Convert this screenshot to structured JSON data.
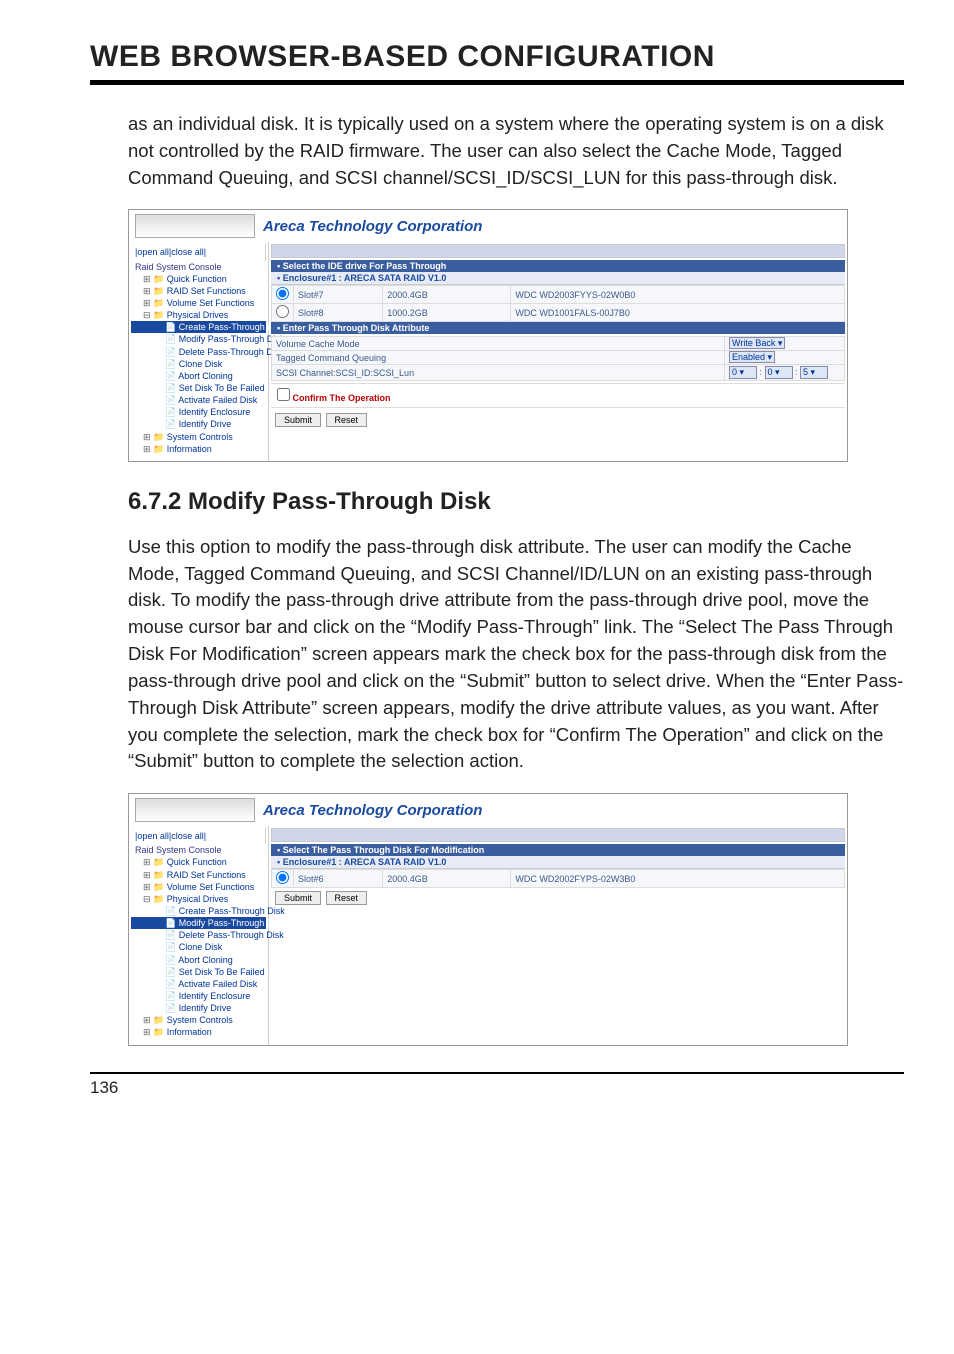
{
  "page": {
    "title": "WEB BROWSER-BASED CONFIGURATION",
    "number": "136",
    "para1": "as an individual disk. It is typically used on a system where the operating system is on a disk not controlled by the RAID firmware. The user can also select the Cache Mode, Tagged Command Queuing, and SCSI channel/SCSI_ID/SCSI_LUN for this pass-through disk.",
    "section_title": "6.7.2 Modify Pass-Through Disk",
    "para2": "Use this option to modify the pass-through disk attribute. The user can modify the Cache Mode, Tagged Command Queuing, and SCSI Channel/ID/LUN on an existing pass-through disk. To modify the pass-through drive attribute from the pass-through drive pool, move the mouse cursor bar and click on the “Modify Pass-Through” link. The “Select The Pass Through Disk For Modification” screen appears mark the check box for the pass-through disk from the pass-through drive pool and click on the “Submit” button to select drive. When the “Enter Pass-Through Disk Attribute” screen appears, modify the drive attribute values, as you want. After you complete the selection, mark the check box for “Confirm The Operation” and click on the “Submit” button to complete the selection action."
  },
  "shot1": {
    "corp": "Areca Technology Corporation",
    "openclose": "|open all|close all|",
    "nav": {
      "root": "Raid System Console",
      "items": [
        {
          "l": "Quick Function",
          "lvl": 1,
          "exp": "+"
        },
        {
          "l": "RAID Set Functions",
          "lvl": 1,
          "exp": "+"
        },
        {
          "l": "Volume Set Functions",
          "lvl": 1,
          "exp": "+"
        },
        {
          "l": "Physical Drives",
          "lvl": 1,
          "exp": "-"
        },
        {
          "l": "Create Pass-Through Disk",
          "lvl": 2,
          "active": true
        },
        {
          "l": "Modify Pass-Through Disk",
          "lvl": 2
        },
        {
          "l": "Delete Pass-Through Disk",
          "lvl": 2
        },
        {
          "l": "Clone Disk",
          "lvl": 2
        },
        {
          "l": "Abort Cloning",
          "lvl": 2
        },
        {
          "l": "Set Disk To Be Failed",
          "lvl": 2
        },
        {
          "l": "Activate Failed Disk",
          "lvl": 2
        },
        {
          "l": "Identify Enclosure",
          "lvl": 2
        },
        {
          "l": "Identify Drive",
          "lvl": 2
        },
        {
          "l": "System Controls",
          "lvl": 1,
          "exp": "+"
        },
        {
          "l": "Information",
          "lvl": 1,
          "exp": "+"
        }
      ]
    },
    "headers": {
      "select": "▪ Select the IDE drive For Pass Through",
      "enclosure": "▪ Enclosure#1 : ARECA SATA RAID V1.0",
      "attr": "▪ Enter Pass Through Disk Attribute"
    },
    "drives": [
      {
        "sel": true,
        "slot": "Slot#7",
        "size": "2000.4GB",
        "model": "WDC WD2003FYYS-02W0B0"
      },
      {
        "sel": false,
        "slot": "Slot#8",
        "size": "1000.2GB",
        "model": "WDC WD1001FALS-00J7B0"
      }
    ],
    "attrs": {
      "cache": {
        "label": "Volume Cache Mode",
        "value": "Write Back"
      },
      "tcq": {
        "label": "Tagged Command Queuing",
        "value": "Enabled"
      },
      "scsi": {
        "label": "SCSI Channel:SCSI_ID:SCSI_Lun",
        "ch": "0",
        "id": "0",
        "lun": "5"
      }
    },
    "confirm": "Confirm The Operation",
    "submit": "Submit",
    "reset": "Reset"
  },
  "shot2": {
    "corp": "Areca Technology Corporation",
    "openclose": "|open all|close all|",
    "nav": {
      "root": "Raid System Console",
      "items": [
        {
          "l": "Quick Function",
          "lvl": 1,
          "exp": "+"
        },
        {
          "l": "RAID Set Functions",
          "lvl": 1,
          "exp": "+"
        },
        {
          "l": "Volume Set Functions",
          "lvl": 1,
          "exp": "+"
        },
        {
          "l": "Physical Drives",
          "lvl": 1,
          "exp": "-"
        },
        {
          "l": "Create Pass-Through Disk",
          "lvl": 2
        },
        {
          "l": "Modify Pass-Through Disk",
          "lvl": 2,
          "active": true
        },
        {
          "l": "Delete Pass-Through Disk",
          "lvl": 2
        },
        {
          "l": "Clone Disk",
          "lvl": 2
        },
        {
          "l": "Abort Cloning",
          "lvl": 2
        },
        {
          "l": "Set Disk To Be Failed",
          "lvl": 2
        },
        {
          "l": "Activate Failed Disk",
          "lvl": 2
        },
        {
          "l": "Identify Enclosure",
          "lvl": 2
        },
        {
          "l": "Identify Drive",
          "lvl": 2
        },
        {
          "l": "System Controls",
          "lvl": 1,
          "exp": "+"
        },
        {
          "l": "Information",
          "lvl": 1,
          "exp": "+"
        }
      ]
    },
    "headers": {
      "select": "▪ Select The Pass Through Disk For Modification",
      "enclosure": "▪ Enclosure#1 : ARECA SATA RAID V1.0"
    },
    "drives": [
      {
        "sel": true,
        "slot": "Slot#6",
        "size": "2000.4GB",
        "model": "WDC WD2002FYPS-02W3B0"
      }
    ],
    "submit": "Submit",
    "reset": "Reset"
  }
}
